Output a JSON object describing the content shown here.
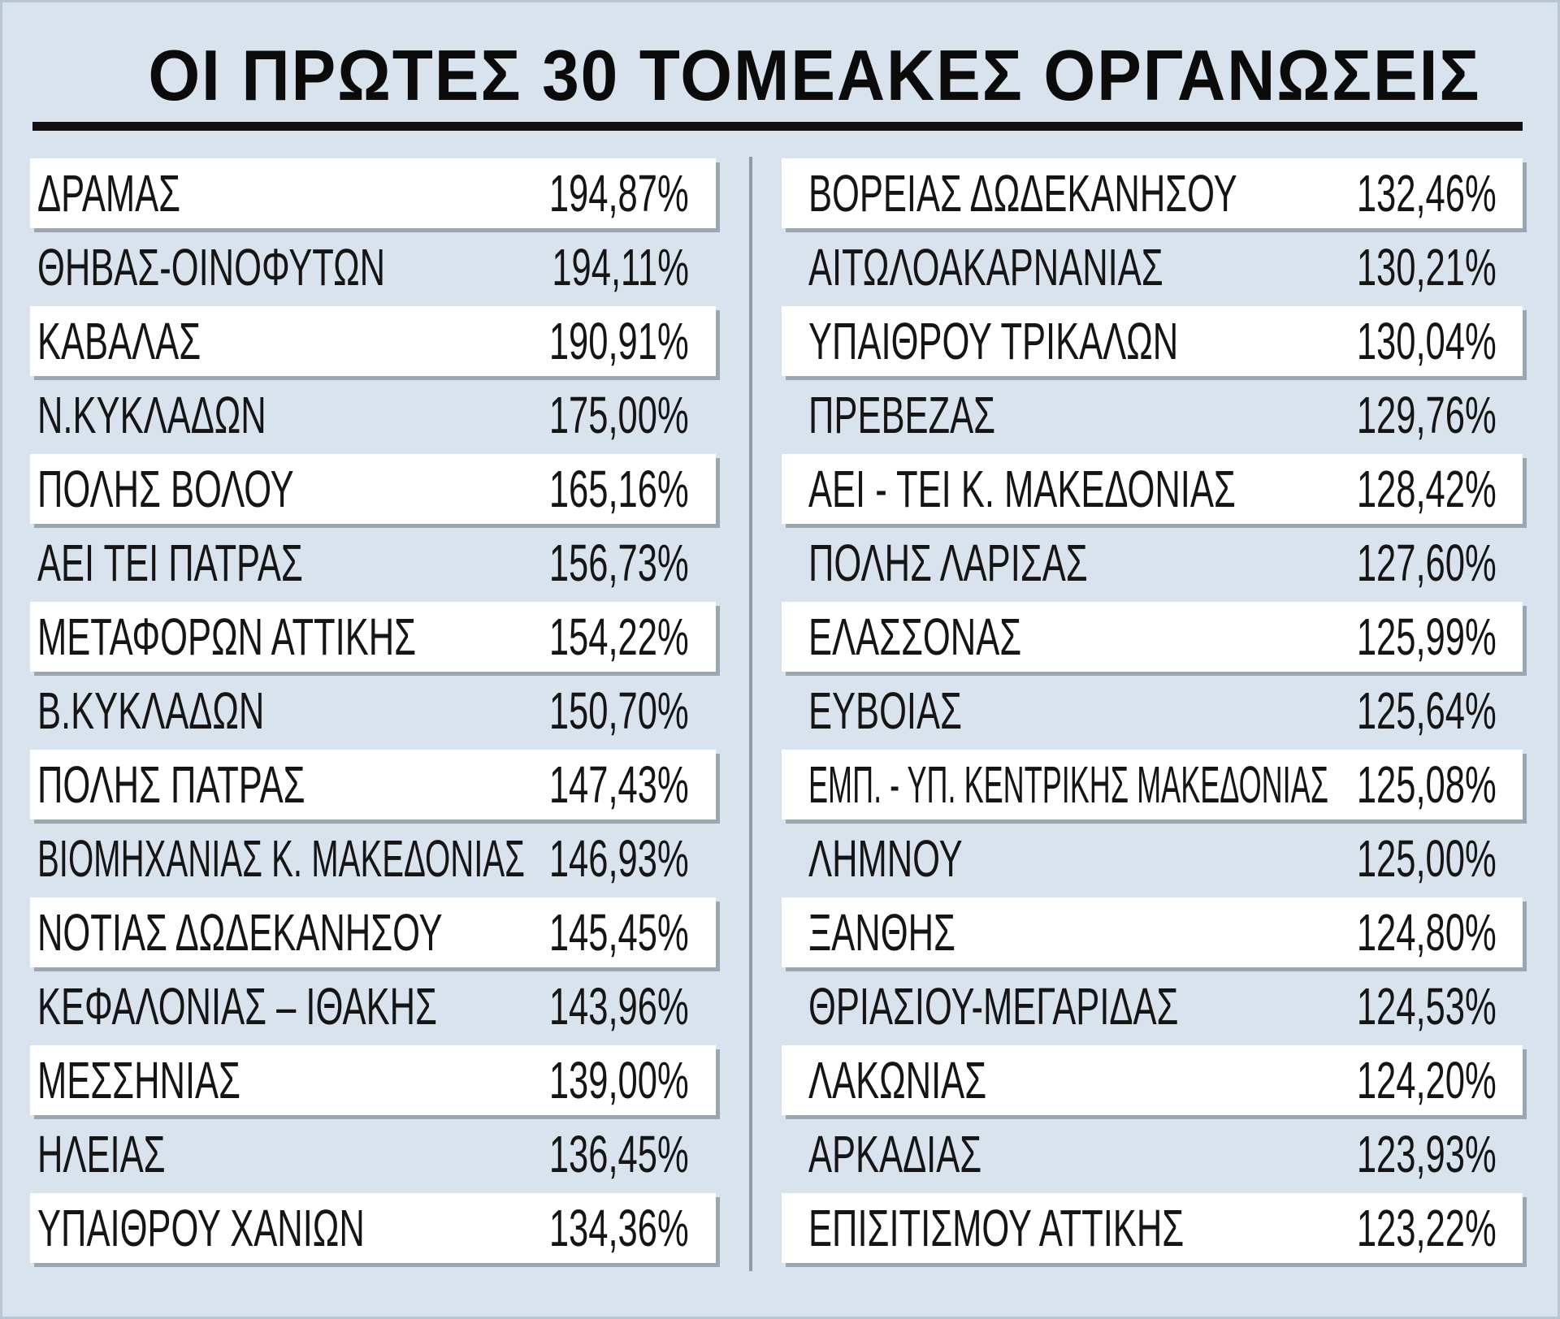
{
  "title": "ΟΙ ΠΡΩΤΕΣ 30 ΤΟΜΕΑΚΕΣ ΟΡΓΑΝΩΣΕΙΣ",
  "left": [
    {
      "name": "ΔΡΑΜΑΣ",
      "value": "194,87%"
    },
    {
      "name": "ΘΗΒΑΣ-ΟΙΝΟΦΥΤΩΝ",
      "value": "194,11%"
    },
    {
      "name": "ΚΑΒΑΛΑΣ",
      "value": "190,91%"
    },
    {
      "name": "Ν.ΚΥΚΛΑΔΩΝ",
      "value": "175,00%"
    },
    {
      "name": "ΠΟΛΗΣ ΒΟΛΟΥ",
      "value": "165,16%"
    },
    {
      "name": "ΑΕΙ ΤΕΙ ΠΑΤΡΑΣ",
      "value": "156,73%"
    },
    {
      "name": "ΜΕΤΑΦΟΡΩΝ ΑΤΤΙΚΗΣ",
      "value": "154,22%"
    },
    {
      "name": "Β.ΚΥΚΛΑΔΩΝ",
      "value": "150,70%"
    },
    {
      "name": "ΠΟΛΗΣ ΠΑΤΡΑΣ",
      "value": "147,43%"
    },
    {
      "name": "ΒΙΟΜΗΧΑΝΙΑΣ Κ. ΜΑΚΕΔΟΝΙΑΣ",
      "value": "146,93%"
    },
    {
      "name": "ΝΟΤΙΑΣ ΔΩΔΕΚΑΝΗΣΟΥ",
      "value": "145,45%"
    },
    {
      "name": "ΚΕΦΑΛΟΝΙΑΣ – ΙΘΑΚΗΣ",
      "value": "143,96%"
    },
    {
      "name": "ΜΕΣΣΗΝΙΑΣ",
      "value": "139,00%"
    },
    {
      "name": "ΗΛΕΙΑΣ",
      "value": "136,45%"
    },
    {
      "name": "ΥΠΑΙΘΡΟΥ ΧΑΝΙΩΝ",
      "value": "134,36%"
    }
  ],
  "right": [
    {
      "name": "ΒΟΡΕΙΑΣ ΔΩΔΕΚΑΝΗΣΟΥ",
      "value": "132,46%"
    },
    {
      "name": "ΑΙΤΩΛΟΑΚΑΡΝΑΝΙΑΣ",
      "value": "130,21%"
    },
    {
      "name": "ΥΠΑΙΘΡΟΥ ΤΡΙΚΑΛΩΝ",
      "value": "130,04%"
    },
    {
      "name": "ΠΡΕΒΕΖΑΣ",
      "value": "129,76%"
    },
    {
      "name": "ΑΕΙ - ΤΕΙ Κ. ΜΑΚΕΔΟΝΙΑΣ",
      "value": "128,42%"
    },
    {
      "name": "ΠΟΛΗΣ ΛΑΡΙΣΑΣ",
      "value": "127,60%"
    },
    {
      "name": "ΕΛΑΣΣΟΝΑΣ",
      "value": "125,99%"
    },
    {
      "name": "ΕΥΒΟΙΑΣ",
      "value": "125,64%"
    },
    {
      "name": "ΕΜΠ. - ΥΠ. ΚΕΝΤΡΙΚΗΣ ΜΑΚΕΔΟΝΙΑΣ",
      "value": "125,08%"
    },
    {
      "name": "ΛΗΜΝΟΥ",
      "value": "125,00%"
    },
    {
      "name": "ΞΑΝΘΗΣ",
      "value": "124,80%"
    },
    {
      "name": "ΘΡΙΑΣΙΟΥ-ΜΕΓΑΡΙΔΑΣ",
      "value": "124,53%"
    },
    {
      "name": "ΛΑΚΩΝΙΑΣ",
      "value": "124,20%"
    },
    {
      "name": "ΑΡΚΑΔΙΑΣ",
      "value": "123,93%"
    },
    {
      "name": "ΕΠΙΣΙΤΙΣΜΟΥ ΑΤΤΙΚΗΣ",
      "value": "123,22%"
    }
  ]
}
